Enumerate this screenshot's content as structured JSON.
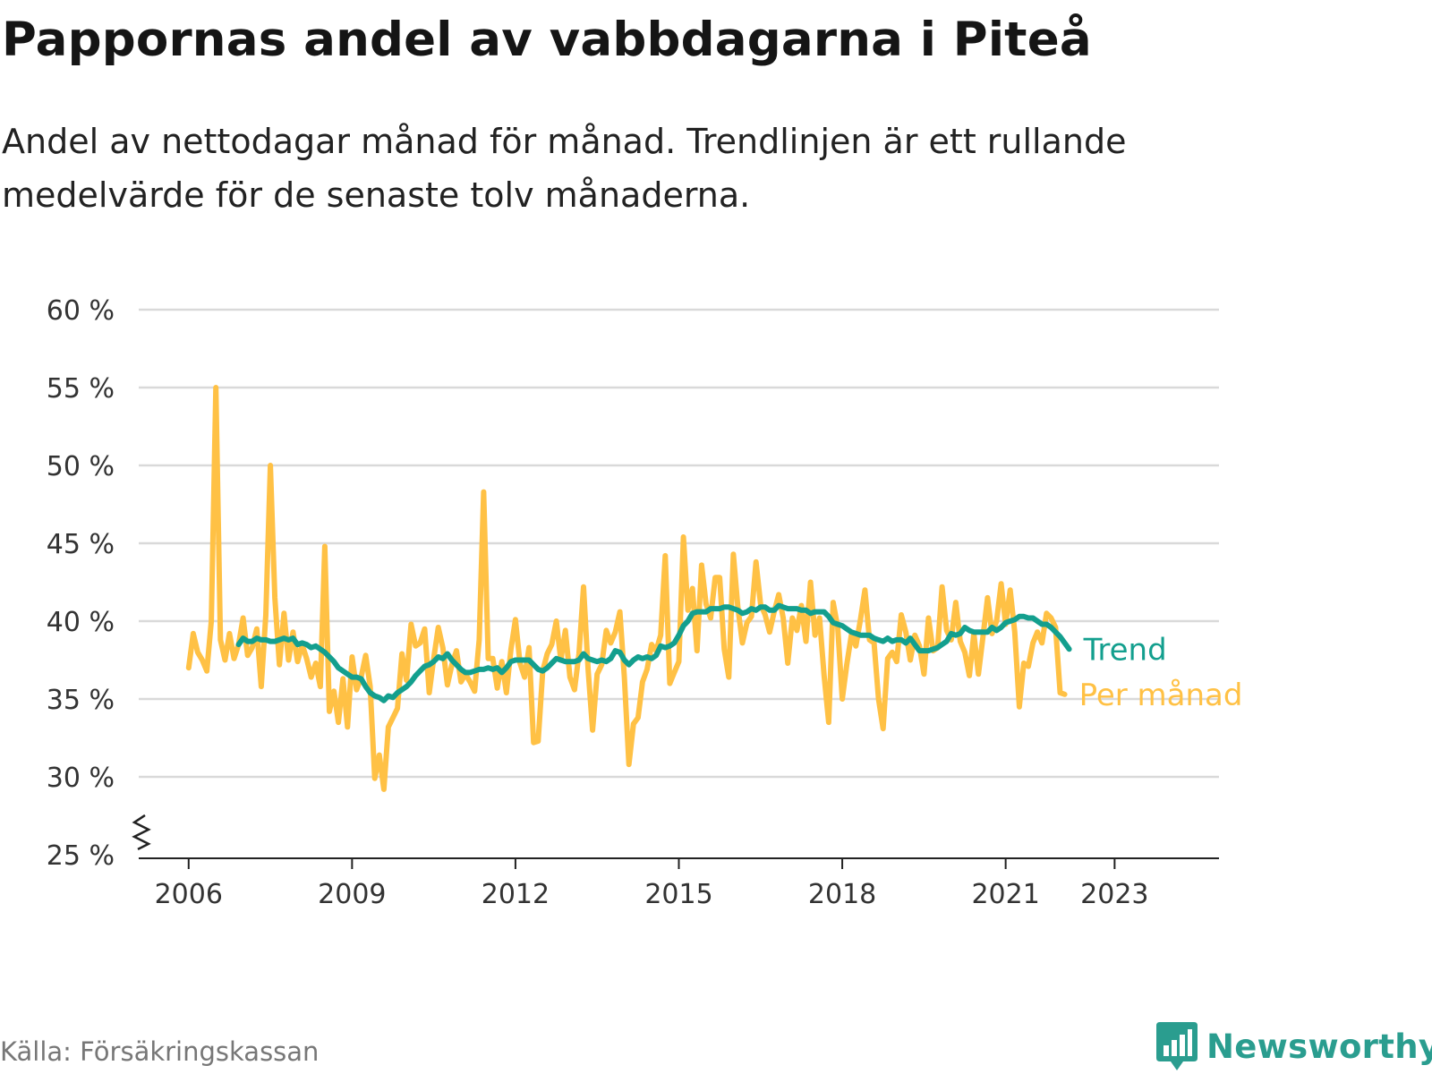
{
  "header": {
    "title": "Pappornas andel av vabbdagarna i Piteå",
    "subtitle": "Andel av nettodagar månad för månad. Trendlinjen är ett rullande medelvärde för de senaste tolv månaderna."
  },
  "footer": {
    "source": "Källa: Försäkringskassan",
    "brand": "Newsworthy"
  },
  "colors": {
    "monthly": "#ffc145",
    "trend": "#139f8e",
    "grid": "#d9d9d9",
    "axis": "#222222",
    "brand": "#2a9d8f"
  },
  "icons": {
    "brand_logo": "bar-chart-speech-bubble-icon",
    "axis_break": "zigzag-axis-break-icon"
  },
  "chart_data": {
    "type": "line",
    "title": "Pappornas andel av vabbdagarna i Piteå",
    "xlabel": "",
    "ylabel": "",
    "x_tick_labels": [
      "2006",
      "2009",
      "2012",
      "2015",
      "2018",
      "2021",
      "2023"
    ],
    "y_tick_labels": [
      "25 %",
      "30 %",
      "35 %",
      "40 %",
      "45 %",
      "50 %",
      "55 %",
      "60 %"
    ],
    "y_ticks": [
      25,
      30,
      35,
      40,
      45,
      50,
      55,
      60
    ],
    "ylim": [
      25,
      60
    ],
    "xlim": [
      "2005-02",
      "2024-12"
    ],
    "grid": true,
    "axis_break": true,
    "series": [
      {
        "name": "Per månad",
        "start": "2006-01",
        "values": [
          37,
          39.2,
          38,
          37.5,
          36.8,
          40,
          55,
          38.8,
          37.5,
          39.2,
          37.6,
          38.5,
          40.2,
          37.8,
          38.3,
          39.5,
          35.8,
          40.4,
          50,
          41.5,
          37.2,
          40.5,
          37.5,
          39.3,
          37.4,
          38.5,
          37.6,
          36.4,
          37.3,
          35.8,
          44.8,
          34.2,
          35.5,
          33.5,
          36.3,
          33.2,
          37.7,
          35.6,
          36.4,
          37.8,
          35.8,
          29.9,
          31.4,
          29.2,
          33.2,
          33.8,
          34.4,
          37.9,
          36.2,
          39.8,
          38.4,
          38.6,
          39.5,
          35.4,
          37.6,
          39.6,
          38.3,
          35.9,
          37.2,
          38.1,
          36.1,
          36.6,
          36.1,
          35.5,
          38.8,
          48.3,
          37.6,
          37.6,
          35.7,
          37.4,
          35.4,
          38.2,
          40.1,
          37.3,
          36.4,
          38.3,
          32.2,
          32.3,
          36.8,
          37.9,
          38.5,
          40,
          37.5,
          39.4,
          36.4,
          35.6,
          37.9,
          42.2,
          36.9,
          33,
          36.6,
          37.2,
          39.4,
          38.6,
          39.3,
          40.6,
          36.4,
          30.8,
          33.4,
          33.8,
          36.1,
          36.9,
          38.5,
          38.1,
          39.1,
          44.2,
          36,
          36.7,
          37.4,
          45.4,
          40.7,
          42.1,
          38.1,
          43.6,
          41.1,
          40.2,
          42.8,
          42.8,
          38.2,
          36.4,
          44.3,
          40.9,
          38.6,
          39.9,
          40.3,
          43.8,
          41.1,
          40.4,
          39.3,
          40.6,
          41.7,
          40.2,
          37.3,
          40.2,
          39.4,
          41,
          38.7,
          42.5,
          39.1,
          40.2,
          36.5,
          33.5,
          41.2,
          39.6,
          35,
          37.2,
          39.1,
          38.4,
          40.1,
          42,
          38.8,
          38.6,
          35,
          33.1,
          37.6,
          38,
          37.4,
          40.4,
          39.3,
          37.5,
          39.1,
          38.4,
          36.6,
          40.2,
          38.1,
          38.3,
          42.2,
          39.4,
          38.8,
          41.2,
          38.7,
          38,
          36.5,
          39.2,
          36.6,
          39,
          41.5,
          39.2,
          40,
          42.4,
          39.8,
          42,
          39.3,
          34.5,
          37.3,
          37.1,
          38.6,
          39.3,
          38.6,
          40.5,
          40.2,
          39.6,
          35.4,
          35.3
        ]
      },
      {
        "name": "Trend",
        "start": "2006-12",
        "values": [
          38.5,
          38.9,
          38.7,
          38.7,
          38.9,
          38.8,
          38.8,
          38.7,
          38.7,
          38.8,
          38.9,
          38.8,
          38.9,
          38.5,
          38.6,
          38.5,
          38.3,
          38.4,
          38.2,
          38,
          37.7,
          37.4,
          37,
          36.8,
          36.6,
          36.4,
          36.4,
          36.3,
          35.8,
          35.4,
          35.2,
          35.1,
          34.9,
          35.2,
          35.1,
          35.4,
          35.6,
          35.8,
          36.1,
          36.5,
          36.8,
          37.1,
          37.2,
          37.4,
          37.7,
          37.6,
          37.9,
          37.5,
          37.2,
          36.9,
          36.7,
          36.7,
          36.8,
          36.9,
          36.9,
          37,
          36.9,
          37,
          36.7,
          37,
          37.4,
          37.5,
          37.5,
          37.5,
          37.5,
          37.2,
          36.9,
          36.8,
          37,
          37.3,
          37.6,
          37.5,
          37.4,
          37.4,
          37.4,
          37.5,
          37.9,
          37.6,
          37.5,
          37.4,
          37.5,
          37.4,
          37.6,
          38.1,
          38,
          37.5,
          37.2,
          37.5,
          37.7,
          37.6,
          37.7,
          37.6,
          37.8,
          38.4,
          38.3,
          38.4,
          38.6,
          39.1,
          39.7,
          40,
          40.5,
          40.6,
          40.6,
          40.6,
          40.8,
          40.8,
          40.8,
          40.9,
          40.9,
          40.8,
          40.7,
          40.5,
          40.6,
          40.8,
          40.7,
          40.9,
          40.9,
          40.7,
          40.7,
          41,
          40.9,
          40.8,
          40.8,
          40.8,
          40.7,
          40.7,
          40.5,
          40.6,
          40.6,
          40.6,
          40.3,
          39.9,
          39.8,
          39.7,
          39.5,
          39.3,
          39.2,
          39.1,
          39.1,
          39.1,
          38.9,
          38.8,
          38.7,
          38.9,
          38.7,
          38.8,
          38.8,
          38.6,
          38.9,
          38.5,
          38.1,
          38.1,
          38.1,
          38.2,
          38.3,
          38.5,
          38.7,
          39.2,
          39.1,
          39.2,
          39.6,
          39.4,
          39.3,
          39.3,
          39.3,
          39.3,
          39.6,
          39.4,
          39.6,
          39.9,
          40,
          40.1,
          40.3,
          40.3,
          40.2,
          40.2,
          40,
          39.8,
          39.8,
          39.6,
          39.3,
          39,
          38.6,
          38.2
        ]
      }
    ],
    "annotations": [
      {
        "series": "Trend",
        "label": "Trend"
      },
      {
        "series": "Per månad",
        "label": "Per månad"
      }
    ]
  }
}
